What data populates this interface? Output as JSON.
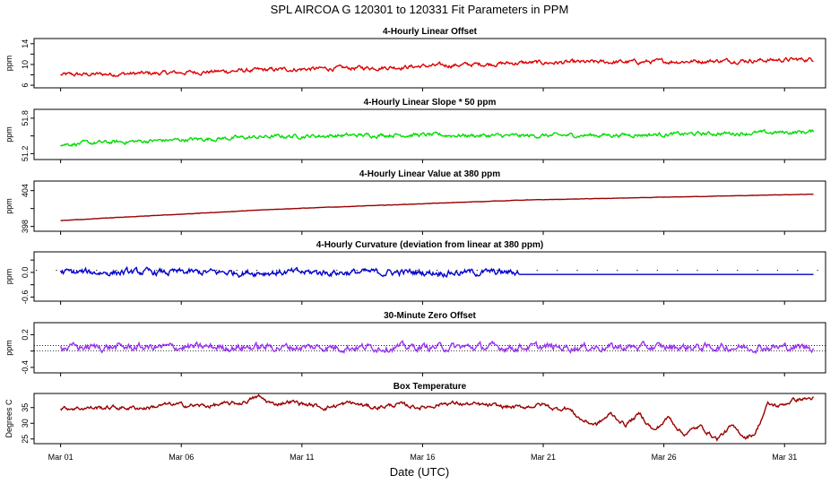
{
  "figure": {
    "title": "SPL   AIRCOA G   120301 to 120331   Fit Parameters in PPM",
    "xlabel": "Date (UTC)",
    "x_ticks": [
      "Mar 01",
      "Mar 06",
      "Mar 11",
      "Mar 16",
      "Mar 21",
      "Mar 26",
      "Mar 31"
    ],
    "x_tick_days": [
      1,
      6,
      11,
      16,
      21,
      26,
      31
    ],
    "xlim": [
      -0.1,
      32.7
    ]
  },
  "chart_data": [
    {
      "type": "line",
      "title": "4-Hourly Linear Offset",
      "ylabel": "ppm",
      "ylim": [
        5.5,
        15
      ],
      "y_ticks": [
        "6",
        "10",
        "14"
      ],
      "y_tick_values": [
        6,
        10,
        14
      ],
      "y_tick_minor": [
        8,
        12
      ],
      "color": "#dd0000",
      "series": [
        {
          "name": "offset",
          "x": [
            1,
            5,
            10,
            15,
            20,
            25,
            30,
            32.2
          ],
          "values": [
            8.0,
            8.3,
            9.0,
            9.5,
            10.3,
            10.5,
            10.8,
            11.0
          ],
          "noise": 0.3
        }
      ]
    },
    {
      "type": "line",
      "title": "4-Hourly Linear Slope * 50 ppm",
      "ylabel": "ppm",
      "ylim": [
        51.1,
        51.95
      ],
      "y_ticks": [
        "51.2",
        "51.8"
      ],
      "y_tick_values": [
        51.2,
        51.8
      ],
      "y_tick_minor": [
        51.5
      ],
      "color": "#00dd00",
      "series": [
        {
          "name": "slope",
          "x": [
            1,
            5,
            10,
            15,
            20,
            25,
            30,
            32.2
          ],
          "values": [
            51.36,
            51.42,
            51.49,
            51.52,
            51.5,
            51.52,
            51.55,
            51.57
          ],
          "noise": 0.025
        }
      ]
    },
    {
      "type": "line",
      "title": "4-Hourly Linear Value at 380 ppm",
      "ylabel": "ppm",
      "ylim": [
        397.2,
        405.6
      ],
      "y_ticks": [
        "398",
        "404"
      ],
      "y_tick_values": [
        398,
        404
      ],
      "y_tick_minor": [
        401
      ],
      "color": "#990000",
      "series": [
        {
          "name": "value",
          "x": [
            1,
            10,
            20,
            32.2
          ],
          "values": [
            399.0,
            400.9,
            402.4,
            403.4
          ],
          "noise": 0.02
        }
      ]
    },
    {
      "type": "line",
      "title": "4-Hourly Curvature (deviation from linear at 380 ppm)",
      "ylabel": "ppm",
      "ylim": [
        -0.7,
        0.5
      ],
      "y_ticks": [
        "-0.6",
        "0.0"
      ],
      "y_tick_values": [
        -0.6,
        0.0
      ],
      "y_tick_minor": [
        -0.3,
        0.3
      ],
      "color": "#0000cc",
      "series": [
        {
          "name": "curvature",
          "x": [
            1,
            20
          ],
          "values": [
            0.0,
            0.0
          ],
          "noise": 0.06
        },
        {
          "name": "curvature-flat",
          "x": [
            20,
            32.2
          ],
          "values": [
            -0.05,
            -0.05
          ],
          "noise": 0
        }
      ],
      "ref_dots_value": 0.05
    },
    {
      "type": "line",
      "title": "30-Minute Zero Offset",
      "ylabel": "ppm",
      "ylim": [
        -0.5,
        0.42
      ],
      "y_ticks": [
        "-0.4",
        "0.2"
      ],
      "y_tick_values": [
        -0.4,
        0.2
      ],
      "y_tick_minor": [
        -0.1
      ],
      "color": "#9933ee",
      "series": [
        {
          "name": "zero",
          "x": [
            1,
            32.2
          ],
          "values": [
            -0.03,
            -0.03
          ],
          "noise": 0.05
        }
      ],
      "ref_lines": [
        0.0,
        -0.1
      ]
    },
    {
      "type": "line",
      "title": "Box Temperature",
      "ylabel": "Degrees C",
      "ylim": [
        23.5,
        39.5
      ],
      "y_ticks": [
        "25",
        "30",
        "35"
      ],
      "y_tick_values": [
        25,
        30,
        35
      ],
      "y_tick_minor": [],
      "color": "#990000",
      "series": [
        {
          "name": "temperature",
          "x": [
            1,
            3,
            4.5,
            5.5,
            7,
            8.5,
            9.2,
            9.8,
            10.5,
            11.2,
            12,
            13,
            14,
            15,
            16,
            17,
            18,
            19,
            20,
            21,
            21.5,
            22,
            22.6,
            23.2,
            23.8,
            24.4,
            25,
            25.6,
            26.2,
            26.8,
            27.5,
            28.2,
            28.8,
            29.4,
            29.8,
            30.3,
            30.8,
            31.4,
            32.2
          ],
          "values": [
            34.8,
            35,
            34.9,
            36,
            35.5,
            36.5,
            38.5,
            36,
            37,
            36,
            35,
            36.5,
            35,
            36,
            35,
            36.5,
            36,
            35.5,
            35,
            36,
            34.5,
            35,
            31,
            29.5,
            33,
            29.5,
            33,
            27.5,
            32,
            26.5,
            29,
            25,
            29,
            25.5,
            27,
            36,
            35.5,
            37.5,
            38
          ],
          "noise": 0.5
        }
      ]
    }
  ]
}
